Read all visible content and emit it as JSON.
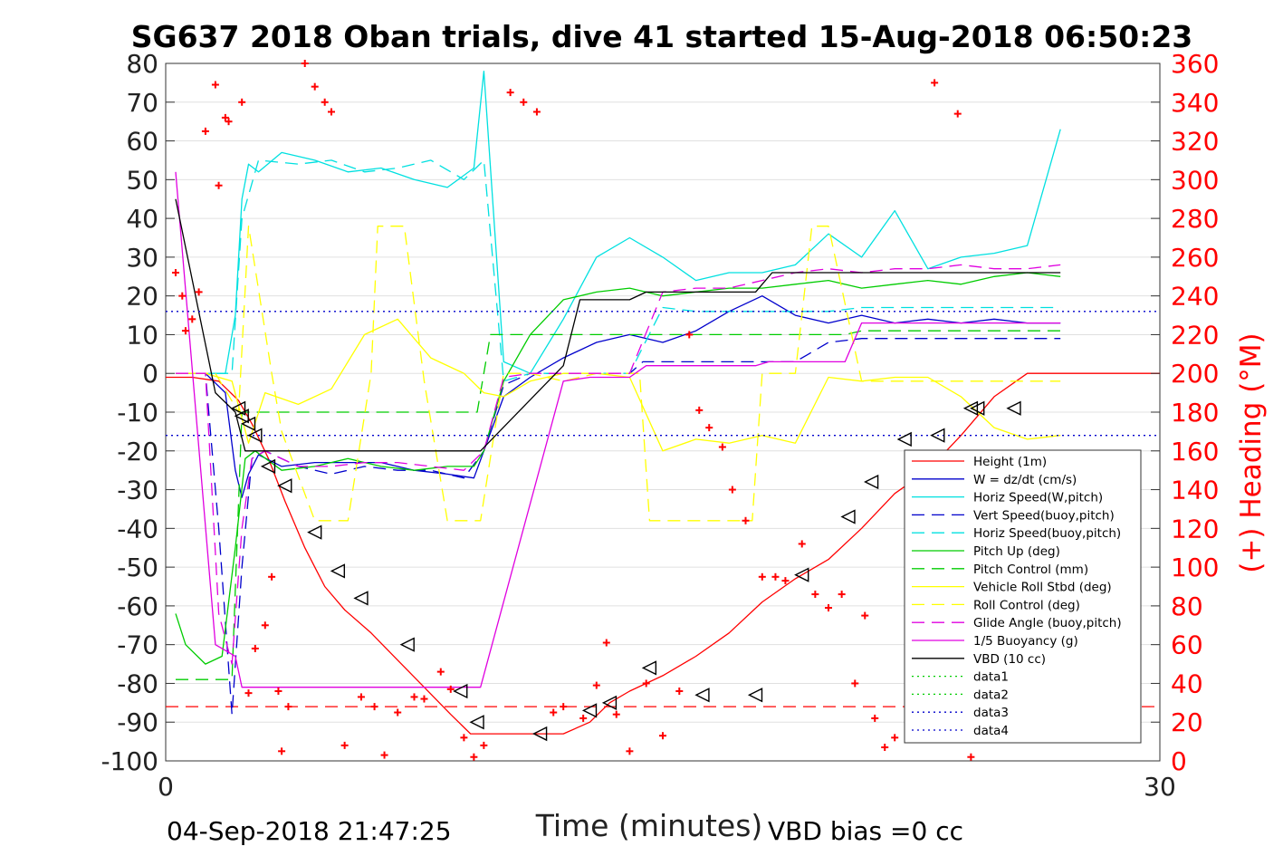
{
  "chart_data": {
    "type": "line",
    "title": "SG637 2018 Oban trials, dive 41 started 15-Aug-2018 06:50:23",
    "xlabel": "Time (minutes)",
    "ylabel": "",
    "y2label": "(+) Heading (°M)",
    "xlim": [
      0,
      30
    ],
    "ylim": [
      -100,
      80
    ],
    "y2lim": [
      0,
      360
    ],
    "x_ticks": [
      "0",
      "30"
    ],
    "y_ticks": [
      "80",
      "70",
      "60",
      "50",
      "40",
      "30",
      "20",
      "10",
      "0",
      "-10",
      "-20",
      "-30",
      "-40",
      "-50",
      "-60",
      "-70",
      "-80",
      "-90",
      "-100"
    ],
    "y2_ticks": [
      "360",
      "340",
      "320",
      "300",
      "280",
      "260",
      "240",
      "220",
      "200",
      "180",
      "160",
      "140",
      "120",
      "100",
      "80",
      "60",
      "40",
      "20",
      "0"
    ],
    "grid": "horizontal",
    "legend_position": "lower-right",
    "footer_left": "04-Sep-2018 21:47:25",
    "footer_right": "VBD bias =0 cc",
    "colors": {
      "red": "#ff0000",
      "blue": "#0000cc",
      "cyan": "#00e0e0",
      "green": "#00cc00",
      "yellow": "#ffff00",
      "magenta": "#e000e0",
      "black": "#000000"
    },
    "series": [
      {
        "name": "Height (1m)",
        "color": "#ff0000",
        "style": "solid",
        "x": [
          0,
          0.8,
          1.6,
          2.2,
          2.6,
          3.1,
          3.6,
          4.2,
          4.8,
          5.4,
          6.2,
          7,
          7.8,
          8.6,
          9.2,
          9.5,
          10,
          11,
          12,
          12.8,
          13.4,
          14,
          15,
          16,
          17,
          18,
          19,
          20,
          21,
          22,
          23,
          24,
          25,
          26,
          27,
          28,
          29,
          30
        ],
        "y": [
          -1,
          -1,
          -2,
          -7,
          -13,
          -22,
          -33,
          -45,
          -55,
          -61,
          -67,
          -74,
          -81,
          -88,
          -93,
          -93,
          -93,
          -93,
          -93,
          -90,
          -85,
          -82,
          -78,
          -73,
          -67,
          -59,
          -53,
          -48,
          -40,
          -31,
          -25,
          -16,
          -6,
          0,
          0,
          0,
          0,
          0
        ]
      },
      {
        "name": "W = dz/dt (cm/s)",
        "color": "#0000cc",
        "style": "solid",
        "x": [
          0.3,
          1.2,
          1.8,
          2.1,
          2.3,
          2.5,
          2.8,
          3.5,
          4.5,
          5.5,
          6.5,
          7.5,
          8.5,
          9.3,
          9.6,
          10.2,
          11,
          12,
          13,
          14,
          15,
          16,
          17,
          18,
          19,
          20,
          21,
          22,
          23,
          24,
          25,
          26,
          27
        ],
        "y": [
          0,
          0,
          -5,
          -25,
          -32,
          -26,
          -21,
          -24,
          -23,
          -23,
          -23,
          -25,
          -26,
          -27,
          -20,
          -6,
          -1,
          4,
          8,
          10,
          8,
          11,
          16,
          20,
          15,
          13,
          15,
          13,
          14,
          13,
          14,
          13,
          13
        ]
      },
      {
        "name": "Horiz Speed(W,pitch)",
        "color": "#00e0e0",
        "style": "solid",
        "x": [
          0.3,
          1.2,
          1.8,
          2.1,
          2.3,
          2.5,
          2.8,
          3.5,
          4.5,
          5.5,
          6.5,
          7.5,
          8.5,
          9.3,
          9.6,
          10.2,
          11,
          12,
          13,
          14,
          15,
          16,
          17,
          18,
          19,
          20,
          21,
          22,
          23,
          24,
          25,
          26,
          27
        ],
        "y": [
          0,
          0,
          0,
          15,
          45,
          54,
          52,
          57,
          55,
          52,
          53,
          50,
          48,
          53,
          78,
          3,
          0,
          14,
          30,
          35,
          30,
          24,
          26,
          26,
          28,
          36,
          30,
          42,
          27,
          30,
          31,
          33,
          63
        ]
      },
      {
        "name": "Vert Speed(buoy,pitch)",
        "color": "#0000cc",
        "style": "dashed",
        "x": [
          0.3,
          1.2,
          1.6,
          2.0,
          2.3,
          2.6,
          3,
          4,
          5,
          6,
          7,
          8,
          9,
          9.6,
          10.2,
          11,
          12,
          13,
          14,
          14.4,
          15,
          16,
          17,
          18,
          19,
          20,
          21,
          22,
          23,
          24,
          25,
          26,
          27
        ],
        "y": [
          0,
          0,
          -40,
          -88,
          -50,
          -22,
          -20,
          -24,
          -26,
          -24,
          -25,
          -25,
          -27,
          -20,
          -3,
          0,
          0,
          0,
          0,
          3,
          3,
          3,
          3,
          3,
          3,
          8,
          9,
          9,
          9,
          9,
          9,
          9,
          9
        ]
      },
      {
        "name": "Horiz Speed(buoy,pitch)",
        "color": "#00e0e0",
        "style": "dashed",
        "x": [
          0.3,
          1.2,
          2.0,
          2.3,
          2.8,
          4,
          5,
          6,
          7,
          8,
          9,
          9.6,
          10.2,
          11,
          12,
          13,
          14,
          15,
          16,
          17,
          18,
          19,
          20,
          21,
          22,
          23,
          24,
          25,
          26,
          27
        ],
        "y": [
          0,
          0,
          0,
          40,
          55,
          54,
          55,
          52,
          53,
          55,
          50,
          55,
          -2,
          0,
          0,
          0,
          0,
          17,
          16,
          16,
          16,
          16,
          16,
          17,
          17,
          17,
          17,
          17,
          17,
          17
        ]
      },
      {
        "name": "Pitch Up (deg)",
        "color": "#00cc00",
        "style": "solid",
        "x": [
          0.3,
          0.6,
          1.2,
          1.7,
          2.1,
          2.4,
          2.7,
          3.5,
          4.5,
          5.5,
          6.5,
          7.5,
          8.5,
          9.3,
          9.6,
          10.2,
          11,
          12,
          13,
          14,
          15,
          16,
          17,
          18,
          19,
          20,
          21,
          22,
          23,
          24,
          25,
          26,
          27
        ],
        "y": [
          -62,
          -70,
          -75,
          -73,
          -45,
          -22,
          -20,
          -25,
          -24,
          -22,
          -24,
          -25,
          -24,
          -24,
          -20,
          -2,
          10,
          19,
          21,
          22,
          20,
          21,
          22,
          22,
          23,
          24,
          22,
          23,
          24,
          23,
          25,
          26,
          25
        ]
      },
      {
        "name": "Pitch Control (mm)",
        "color": "#00cc00",
        "style": "dashed",
        "x": [
          0.3,
          1.2,
          1.6,
          2.0,
          2.3,
          3,
          6,
          9.4,
          9.8,
          12,
          20.5,
          21,
          27
        ],
        "y": [
          -79,
          -79,
          -79,
          -79,
          -10,
          -10,
          -10,
          -10,
          10,
          10,
          10,
          11,
          11
        ]
      },
      {
        "name": "Vehicle Roll Stbd (deg)",
        "color": "#ffff00",
        "style": "solid",
        "x": [
          0.3,
          1.2,
          2,
          2.5,
          3,
          4,
          5,
          6,
          7,
          8,
          9,
          9.6,
          10.2,
          11,
          12,
          13,
          14,
          15,
          16,
          17,
          18,
          19,
          20,
          21,
          22,
          23,
          24,
          25,
          26,
          27
        ],
        "y": [
          0,
          0,
          -2,
          -18,
          -5,
          -8,
          -4,
          10,
          14,
          4,
          0,
          -5,
          -6,
          -2,
          0,
          0,
          -1,
          -20,
          -17,
          -18,
          -16,
          -18,
          -1,
          -2,
          -1,
          -1,
          -6,
          -14,
          -17,
          -16
        ]
      },
      {
        "name": "Roll Control (deg)",
        "color": "#ffff00",
        "style": "dashed",
        "x": [
          0.3,
          1.5,
          2.2,
          2.5,
          3.2,
          3.5,
          4.5,
          5.5,
          6.2,
          6.4,
          7.2,
          7.8,
          8.5,
          9.5,
          10.2,
          11,
          12,
          13,
          14.3,
          14.6,
          15,
          15.8,
          17.7,
          18,
          19,
          19.5,
          20,
          21,
          27
        ],
        "y": [
          0,
          0,
          -10,
          38,
          0,
          -15,
          -38,
          -38,
          0,
          38,
          38,
          -2,
          -38,
          -38,
          0,
          0,
          -2,
          0,
          0,
          -38,
          -38,
          -38,
          -38,
          0,
          0,
          38,
          38,
          -2,
          -2
        ]
      },
      {
        "name": "Glide Angle (buoy,pitch)",
        "color": "#e000e0",
        "style": "dashed",
        "x": [
          0.3,
          1.2,
          1.6,
          2.0,
          2.3,
          2.6,
          3,
          4,
          5,
          6,
          7,
          8,
          9,
          9.6,
          10.2,
          11,
          12,
          13,
          14,
          15,
          16,
          17,
          18,
          19,
          20,
          21,
          22,
          23,
          24,
          25,
          26,
          27
        ],
        "y": [
          0,
          0,
          -62,
          -75,
          -40,
          -22,
          -20,
          -24,
          -24,
          -23,
          -23,
          -24,
          -25,
          -20,
          -1,
          0,
          0,
          0,
          0,
          21,
          22,
          22,
          24,
          26,
          27,
          26,
          27,
          27,
          28,
          27,
          27,
          28
        ]
      },
      {
        "name": "1/5 Buoyancy (g)",
        "color": "#e000e0",
        "style": "solid",
        "x": [
          0.3,
          1.5,
          2.1,
          2.3,
          3,
          5,
          8,
          9.5,
          12,
          12.8,
          14,
          14.5,
          17.8,
          18.2,
          20.5,
          21,
          27
        ],
        "y": [
          52,
          -70,
          -73,
          -81,
          -81,
          -81,
          -81,
          -81,
          -2,
          -1,
          -1,
          2,
          2,
          3,
          3,
          13,
          13
        ]
      },
      {
        "name": "VBD (10 cc)",
        "color": "#000000",
        "style": "solid",
        "x": [
          0.3,
          1.5,
          2.1,
          2.4,
          3,
          5,
          8,
          9.5,
          12,
          12.5,
          14,
          14.5,
          17.8,
          18.3,
          20.5,
          21,
          27
        ],
        "y": [
          45,
          -5,
          -10,
          -20,
          -20,
          -20,
          -20,
          -20,
          2,
          19,
          19,
          21,
          21,
          26,
          26,
          26,
          26
        ]
      },
      {
        "name": "data1",
        "color": "#00cc00",
        "style": "dotted",
        "x": [],
        "y": []
      },
      {
        "name": "data2",
        "color": "#00cc00",
        "style": "dotted",
        "x": [],
        "y": []
      },
      {
        "name": "data3",
        "color": "#0000cc",
        "style": "dotted",
        "x": [
          0,
          30
        ],
        "y": [
          16,
          16
        ]
      },
      {
        "name": "data4",
        "color": "#0000cc",
        "style": "dotted",
        "x": [
          0,
          30
        ],
        "y": [
          -16,
          -16
        ]
      }
    ],
    "reference_lines": [
      {
        "color": "#ff0000",
        "style": "dashed",
        "x": [
          0,
          30
        ],
        "y": [
          -86,
          -86
        ]
      }
    ],
    "heading_points": {
      "name": "(+) Heading (°M)",
      "color": "#ff0000",
      "marker": "plus",
      "x": [
        0.3,
        0.5,
        0.6,
        0.8,
        1.0,
        1.2,
        1.5,
        1.6,
        1.7,
        1.8,
        1.9,
        2.1,
        2.3,
        2.5,
        2.7,
        3.0,
        3.2,
        3.4,
        3.5,
        3.7,
        4.2,
        4.5,
        4.8,
        5.0,
        5.4,
        5.9,
        6.3,
        6.6,
        7.0,
        7.5,
        7.8,
        8.3,
        8.6,
        9.0,
        9.3,
        9.6,
        10.0,
        10.4,
        10.8,
        11.2,
        11.7,
        12.0,
        12.6,
        13.0,
        13.3,
        13.6,
        14.0,
        14.5,
        15.0,
        15.5,
        15.8,
        16.1,
        16.4,
        16.8,
        17.1,
        17.5,
        18.0,
        18.4,
        18.7,
        19.2,
        19.6,
        20.0,
        20.4,
        20.8,
        21.1,
        21.4,
        21.7,
        22.0,
        22.4,
        22.8,
        23.2,
        23.5,
        23.9,
        24.3,
        24.7,
        25.0,
        25.4,
        25.8,
        26.3,
        26.8,
        27.0
      ],
      "y": [
        252,
        240,
        222,
        228,
        242,
        325,
        349,
        297,
        372,
        332,
        330,
        370,
        340,
        35,
        58,
        70,
        95,
        36,
        5,
        28,
        360,
        348,
        340,
        335,
        8,
        33,
        28,
        3,
        25,
        33,
        32,
        46,
        37,
        12,
        2,
        8,
        382,
        345,
        340,
        335,
        25,
        28,
        22,
        39,
        61,
        24,
        5,
        40,
        13,
        36,
        220,
        181,
        172,
        162,
        140,
        124,
        95,
        95,
        93,
        112,
        86,
        79,
        86,
        40,
        75,
        22,
        7,
        12,
        388,
        382,
        350,
        388,
        334,
        2,
        36,
        38,
        16,
        22,
        27,
        18,
        381
      ]
    },
    "dive_markers": {
      "x": [
        2.2,
        2.3,
        2.5,
        2.7,
        3.1,
        3.6,
        4.5,
        5.2,
        5.9,
        7.3,
        8.9,
        9.4,
        11.3,
        12.8,
        13.4,
        14.6,
        16.2,
        17.8,
        19.2,
        20.6,
        21.3,
        22.3,
        23.3,
        24.3,
        24.5,
        25.6
      ],
      "y": [
        -9,
        -11,
        -13,
        -16,
        -24,
        -29,
        -41,
        -51,
        -58,
        -70,
        -82,
        -90,
        -93,
        -87,
        -85,
        -76,
        -83,
        -83,
        -52,
        -37,
        -28,
        -17,
        -16,
        -9,
        -9,
        -9
      ]
    }
  }
}
